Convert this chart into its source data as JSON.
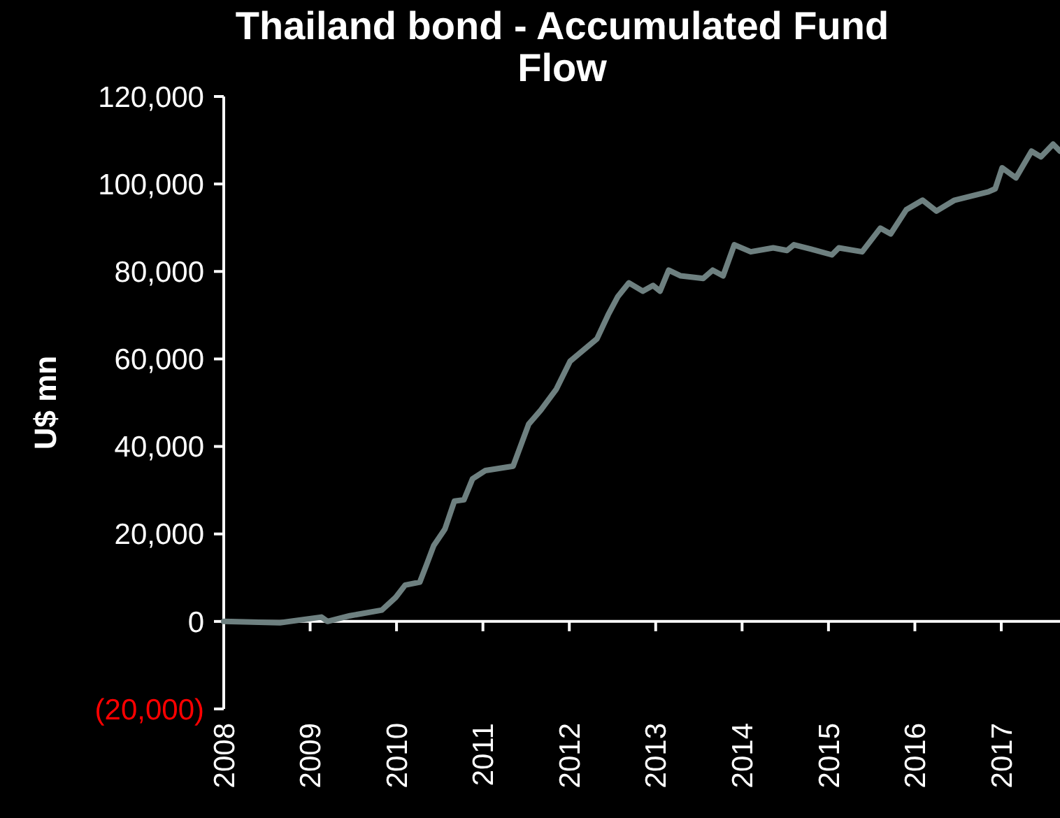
{
  "chart_data": {
    "type": "line",
    "title": "Thailand bond - Accumulated Fund Flow",
    "ylabel": "U$ mn",
    "x": [
      2008,
      2008.65,
      2009.13,
      2009.2,
      2009.46,
      2009.83,
      2009.99,
      2010.1,
      2010.27,
      2010.35,
      2010.43,
      2010.56,
      2010.67,
      2010.78,
      2010.88,
      2011.03,
      2011.35,
      2011.53,
      2011.67,
      2011.85,
      2012.01,
      2012.32,
      2012.45,
      2012.56,
      2012.69,
      2012.85,
      2012.97,
      2013.05,
      2013.15,
      2013.29,
      2013.55,
      2013.66,
      2013.78,
      2013.91,
      2014.1,
      2014.36,
      2014.52,
      2014.6,
      2014.8,
      2015.04,
      2015.12,
      2015.39,
      2015.6,
      2015.72,
      2015.9,
      2016.09,
      2016.25,
      2016.46,
      2016.85,
      2016.93,
      2017.01,
      2017.17,
      2017.35,
      2017.46,
      2017.6,
      2017.68
    ],
    "series": [
      {
        "color": "#6e8080",
        "values": [
          0,
          -300,
          1000,
          0,
          1300,
          2600,
          5500,
          8300,
          9000,
          13100,
          17300,
          21100,
          27500,
          27800,
          32600,
          34500,
          35500,
          45100,
          48300,
          53100,
          59500,
          64600,
          70100,
          74200,
          77400,
          75500,
          76800,
          75500,
          80300,
          79000,
          78400,
          80300,
          79000,
          86100,
          84500,
          85400,
          84800,
          86100,
          85100,
          83800,
          85400,
          84500,
          89900,
          88600,
          94100,
          96300,
          93800,
          96300,
          98200,
          98900,
          103700,
          101400,
          107500,
          106200,
          109100,
          107500
        ]
      }
    ],
    "xlim": [
      2008,
      2017.68
    ],
    "xticks": [
      2008,
      2009,
      2010,
      2011,
      2012,
      2013,
      2014,
      2015,
      2016,
      2017
    ],
    "ylim": [
      -20000,
      120000
    ],
    "yticks": [
      {
        "value": -20000,
        "label": "(20,000)"
      },
      {
        "value": 0,
        "label": "0"
      },
      {
        "value": 20000,
        "label": "20,000"
      },
      {
        "value": 40000,
        "label": "40,000"
      },
      {
        "value": 60000,
        "label": "60,000"
      },
      {
        "value": 80000,
        "label": "80,000"
      },
      {
        "value": 100000,
        "label": "100,000"
      },
      {
        "value": 120000,
        "label": "120,000"
      }
    ],
    "marker": "none",
    "line_style": "solid"
  }
}
